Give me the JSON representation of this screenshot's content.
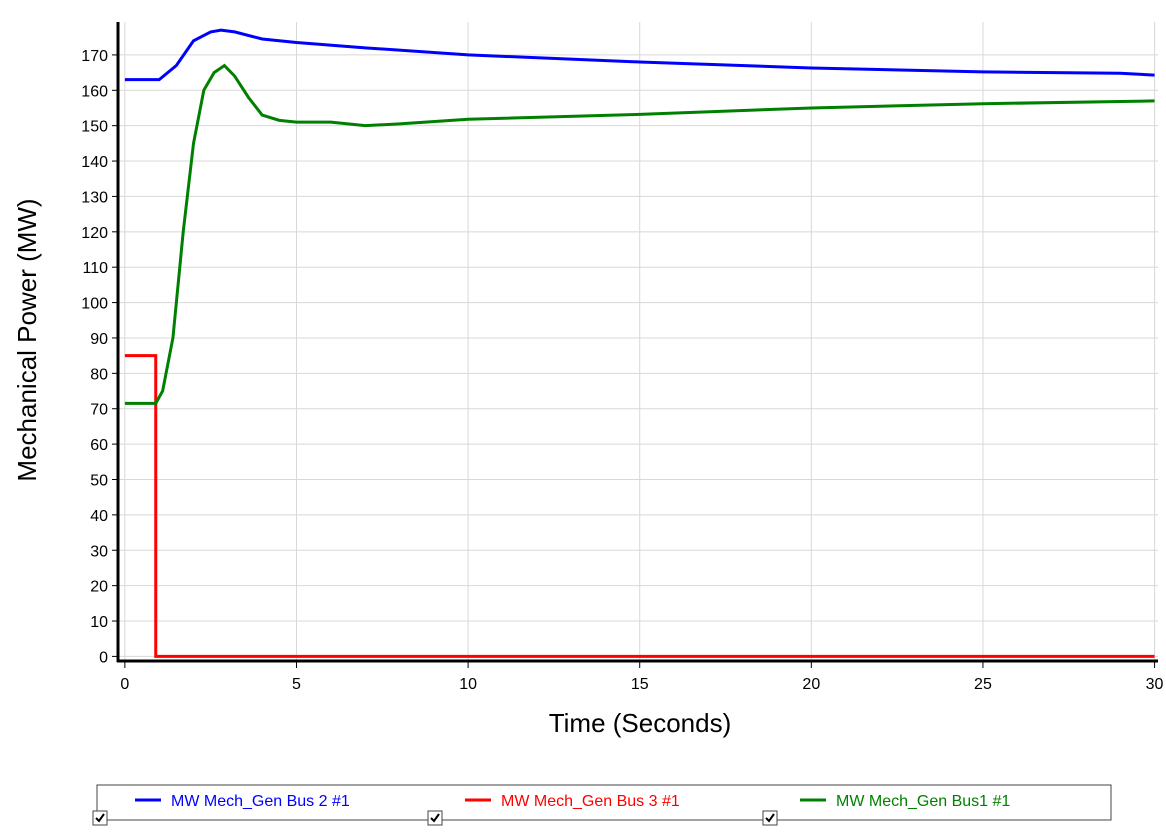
{
  "chart_data": {
    "type": "line",
    "x_label": "Time (Seconds)",
    "y_label": "Mechanical Power (MW)",
    "xlim": [
      -0.2,
      30.1
    ],
    "ylim": [
      -1.3,
      179.3
    ],
    "xticks": [
      0,
      5,
      10,
      15,
      20,
      25,
      30
    ],
    "yticks": [
      0,
      10,
      20,
      30,
      40,
      50,
      60,
      70,
      80,
      90,
      100,
      110,
      120,
      130,
      140,
      150,
      160,
      170
    ],
    "grid": true,
    "legend": "bottom",
    "series": [
      {
        "name": "MW Mech_Gen Bus 2 #1",
        "color": "#0000ff",
        "x": [
          0,
          1.0,
          1.5,
          2.0,
          2.5,
          2.8,
          3.2,
          4,
          5,
          7,
          10,
          15,
          20,
          25,
          29,
          30
        ],
        "values": [
          163,
          163,
          167,
          174,
          176.5,
          177,
          176.5,
          174.5,
          173.5,
          172,
          170,
          168,
          166.3,
          165.2,
          164.8,
          164.3
        ]
      },
      {
        "name": "MW Mech_Gen Bus 3 #1",
        "color": "#ff0000",
        "x": [
          0,
          0.9,
          0.9,
          30
        ],
        "values": [
          85,
          85,
          0,
          0
        ]
      },
      {
        "name": "MW Mech_Gen Bus1 #1",
        "color": "#008000",
        "x": [
          0,
          0.9,
          1.1,
          1.4,
          1.7,
          2.0,
          2.3,
          2.6,
          2.9,
          3.2,
          3.6,
          4.0,
          4.5,
          5,
          6,
          7,
          8,
          10,
          15,
          20,
          25,
          30
        ],
        "values": [
          71.5,
          71.5,
          75,
          90,
          120,
          145,
          160,
          165,
          167,
          164,
          158,
          153,
          151.5,
          151,
          151,
          150,
          150.5,
          151.8,
          153.2,
          155,
          156.2,
          157
        ]
      }
    ]
  }
}
